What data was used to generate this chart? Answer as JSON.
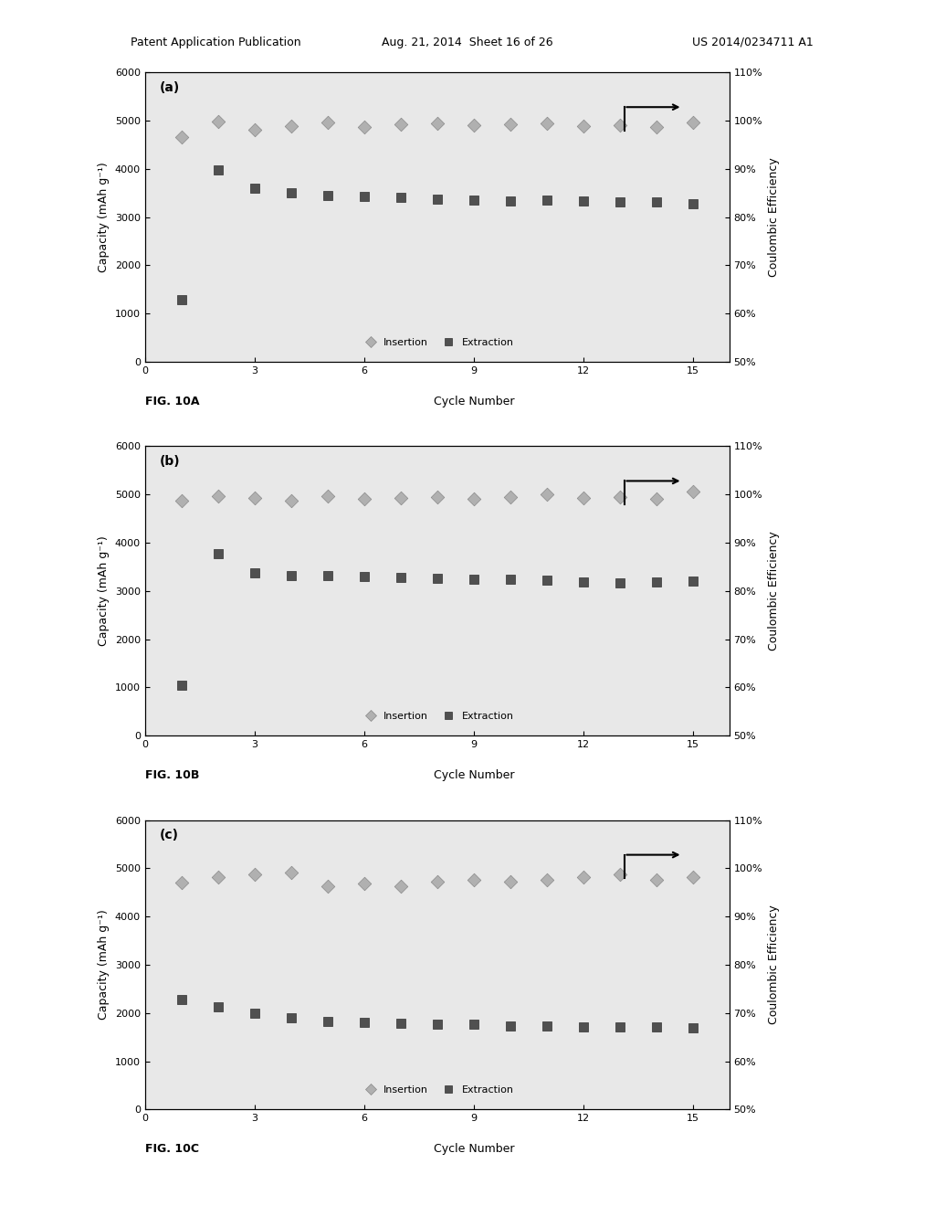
{
  "header_left": "Patent Application Publication",
  "header_mid": "Aug. 21, 2014  Sheet 16 of 26",
  "header_right": "US 2014/0234711 A1",
  "panels": [
    {
      "label": "(a)",
      "fig_label": "FIG. 10A",
      "insertion_x": [
        1,
        2,
        3,
        4,
        5,
        6,
        7,
        8,
        9,
        10,
        11,
        12,
        13,
        14,
        15
      ],
      "insertion_y": [
        4650,
        4980,
        4820,
        4880,
        4970,
        4870,
        4920,
        4950,
        4900,
        4920,
        4940,
        4880,
        4900,
        4870,
        4960
      ],
      "extraction_x": [
        1,
        2,
        3,
        4,
        5,
        6,
        7,
        8,
        9,
        10,
        11,
        12,
        13,
        14,
        15
      ],
      "extraction_y": [
        1280,
        3980,
        3600,
        3510,
        3450,
        3430,
        3400,
        3380,
        3360,
        3340,
        3350,
        3330,
        3320,
        3310,
        3280
      ]
    },
    {
      "label": "(b)",
      "fig_label": "FIG. 10B",
      "insertion_x": [
        1,
        2,
        3,
        4,
        5,
        6,
        7,
        8,
        9,
        10,
        11,
        12,
        13,
        14,
        15
      ],
      "insertion_y": [
        4870,
        4970,
        4920,
        4880,
        4960,
        4900,
        4920,
        4950,
        4900,
        4950,
        5000,
        4920,
        4950,
        4900,
        5060
      ],
      "extraction_x": [
        1,
        2,
        3,
        4,
        5,
        6,
        7,
        8,
        9,
        10,
        11,
        12,
        13,
        14,
        15
      ],
      "extraction_y": [
        1050,
        3780,
        3380,
        3320,
        3320,
        3300,
        3280,
        3260,
        3250,
        3240,
        3230,
        3190,
        3170,
        3180,
        3200
      ]
    },
    {
      "label": "(c)",
      "fig_label": "FIG. 10C",
      "insertion_x": [
        1,
        2,
        3,
        4,
        5,
        6,
        7,
        8,
        9,
        10,
        11,
        12,
        13,
        14,
        15
      ],
      "insertion_y": [
        4700,
        4820,
        4870,
        4920,
        4620,
        4680,
        4620,
        4720,
        4770,
        4720,
        4770,
        4820,
        4870,
        4770,
        4820
      ],
      "extraction_x": [
        1,
        2,
        3,
        4,
        5,
        6,
        7,
        8,
        9,
        10,
        11,
        12,
        13,
        14,
        15
      ],
      "extraction_y": [
        2280,
        2120,
        2000,
        1900,
        1820,
        1800,
        1780,
        1760,
        1760,
        1740,
        1740,
        1720,
        1720,
        1710,
        1700
      ]
    }
  ],
  "ylim_capacity": [
    0,
    6000
  ],
  "xlim": [
    0,
    16
  ],
  "xticks": [
    0,
    3,
    6,
    9,
    12,
    15
  ],
  "yticks_capacity": [
    0,
    1000,
    2000,
    3000,
    4000,
    5000,
    6000
  ],
  "yticks_ce_labels": [
    "50%",
    "60%",
    "70%",
    "80%",
    "90%",
    "100%",
    "110%"
  ],
  "yticks_ce_vals": [
    0.5,
    0.6,
    0.7,
    0.8,
    0.9,
    1.0,
    1.1
  ],
  "xlabel": "Cycle Number",
  "ylabel_left": "Capacity (mAh g⁻¹)",
  "ylabel_right": "Coulombic Efficiency",
  "insertion_color": "#b0b0b0",
  "insertion_edge": "#888888",
  "extraction_color": "#505050",
  "extraction_edge": "#303030",
  "insertion_marker": "D",
  "extraction_marker": "s",
  "marker_size": 55,
  "bg_color": "#ffffff",
  "plot_bg": "#e8e8e8",
  "border_color": "#000000",
  "fontsize_tick": 8,
  "fontsize_label": 9,
  "fontsize_panel": 10,
  "fontsize_header": 9,
  "fontsize_legend": 8
}
